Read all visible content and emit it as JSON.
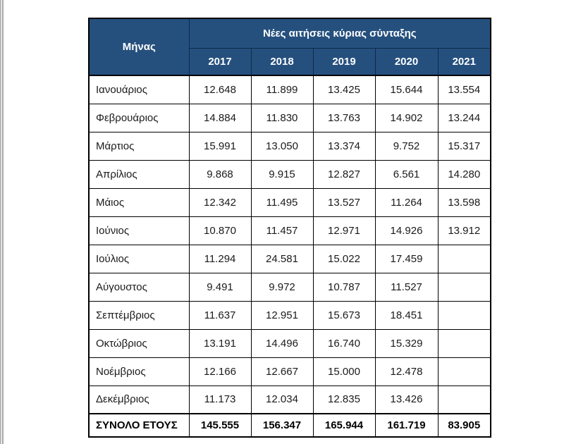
{
  "table": {
    "header": {
      "month_col_label": "Μήνας",
      "group_label": "Νέες αιτήσεις κύριας σύνταξης",
      "years": [
        "2017",
        "2018",
        "2019",
        "2020",
        "2021"
      ]
    },
    "rows": [
      {
        "month": "Ιανουάριος",
        "values": [
          "12.648",
          "11.899",
          "13.425",
          "15.644",
          "13.554"
        ]
      },
      {
        "month": "Φεβρουάριος",
        "values": [
          "14.884",
          "11.830",
          "13.763",
          "14.902",
          "13.244"
        ]
      },
      {
        "month": "Μάρτιος",
        "values": [
          "15.991",
          "13.050",
          "13.374",
          "9.752",
          "15.317"
        ]
      },
      {
        "month": "Απρίλιος",
        "values": [
          "9.868",
          "9.915",
          "12.827",
          "6.561",
          "14.280"
        ]
      },
      {
        "month": "Μάιος",
        "values": [
          "12.342",
          "11.495",
          "13.527",
          "11.264",
          "13.598"
        ]
      },
      {
        "month": "Ιούνιος",
        "values": [
          "10.870",
          "11.457",
          "12.971",
          "14.926",
          "13.912"
        ]
      },
      {
        "month": "Ιούλιος",
        "values": [
          "11.294",
          "24.581",
          "15.022",
          "17.459",
          ""
        ]
      },
      {
        "month": "Αύγουστος",
        "values": [
          "9.491",
          "9.972",
          "10.787",
          "11.527",
          ""
        ]
      },
      {
        "month": "Σεπτέμβριος",
        "values": [
          "11.637",
          "12.951",
          "15.673",
          "18.451",
          ""
        ]
      },
      {
        "month": "Οκτώβριος",
        "values": [
          "13.191",
          "14.496",
          "16.740",
          "15.329",
          ""
        ]
      },
      {
        "month": "Νοέμβριος",
        "values": [
          "12.166",
          "12.667",
          "15.000",
          "12.478",
          ""
        ]
      },
      {
        "month": "Δεκέμβριος",
        "values": [
          "11.173",
          "12.034",
          "12.835",
          "13.426",
          ""
        ]
      }
    ],
    "total": {
      "label": "ΣΥΝΟΛΟ ΕΤΟΥΣ",
      "values": [
        "145.555",
        "156.347",
        "165.944",
        "161.719",
        "83.905"
      ]
    },
    "colors": {
      "header_bg": "#25507E",
      "header_text": "#FFFFFF",
      "body_text": "#1A1A1A",
      "border": "#000000"
    }
  },
  "chart_data": {
    "type": "table",
    "title": "Νέες αιτήσεις κύριας σύνταξης",
    "row_header": "Μήνας",
    "categories": [
      "Ιανουάριος",
      "Φεβρουάριος",
      "Μάρτιος",
      "Απρίλιος",
      "Μάιος",
      "Ιούνιος",
      "Ιούλιος",
      "Αύγουστος",
      "Σεπτέμβριος",
      "Οκτώβριος",
      "Νοέμβριος",
      "Δεκέμβριος"
    ],
    "series": [
      {
        "name": "2017",
        "values": [
          12648,
          14884,
          15991,
          9868,
          12342,
          10870,
          11294,
          9491,
          11637,
          13191,
          12166,
          11173
        ],
        "total": 145555
      },
      {
        "name": "2018",
        "values": [
          11899,
          11830,
          13050,
          9915,
          11495,
          11457,
          24581,
          9972,
          12951,
          14496,
          12667,
          12034
        ],
        "total": 156347
      },
      {
        "name": "2019",
        "values": [
          13425,
          13763,
          13374,
          12827,
          13527,
          12971,
          15022,
          10787,
          15673,
          16740,
          15000,
          12835
        ],
        "total": 165944
      },
      {
        "name": "2020",
        "values": [
          15644,
          14902,
          9752,
          6561,
          11264,
          14926,
          17459,
          11527,
          18451,
          15329,
          12478,
          13426
        ],
        "total": 161719
      },
      {
        "name": "2021",
        "values": [
          13554,
          13244,
          15317,
          14280,
          13598,
          13912,
          null,
          null,
          null,
          null,
          null,
          null
        ],
        "total": 83905
      }
    ],
    "total_row_label": "ΣΥΝΟΛΟ ΕΤΟΥΣ"
  }
}
